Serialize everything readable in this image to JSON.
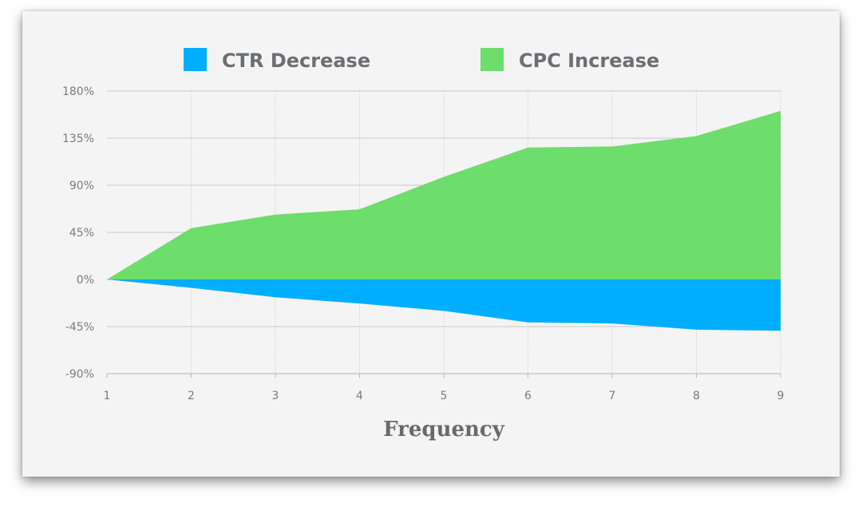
{
  "chart_data": {
    "type": "area",
    "title": "",
    "xlabel": "Frequency",
    "ylabel": "",
    "x": [
      1,
      2,
      3,
      4,
      5,
      6,
      7,
      8,
      9
    ],
    "ylim": [
      -90,
      180
    ],
    "yticks": [
      -90,
      -45,
      0,
      45,
      90,
      135,
      180
    ],
    "ytick_labels": [
      "-90%",
      "-45%",
      "0%",
      "45%",
      "90%",
      "135%",
      "180%"
    ],
    "xtick_labels": [
      "1",
      "2",
      "3",
      "4",
      "5",
      "6",
      "7",
      "8",
      "9"
    ],
    "legend_position": "top",
    "grid": true,
    "series": [
      {
        "name": "CTR Decrease",
        "color": "#00aeff",
        "values": [
          0,
          -8,
          -17,
          -23,
          -30,
          -41,
          -42,
          -48,
          -49
        ]
      },
      {
        "name": "CPC Increase",
        "color": "#6ddd6b",
        "values": [
          0,
          49,
          62,
          67,
          98,
          126,
          127,
          137,
          161
        ]
      }
    ]
  }
}
